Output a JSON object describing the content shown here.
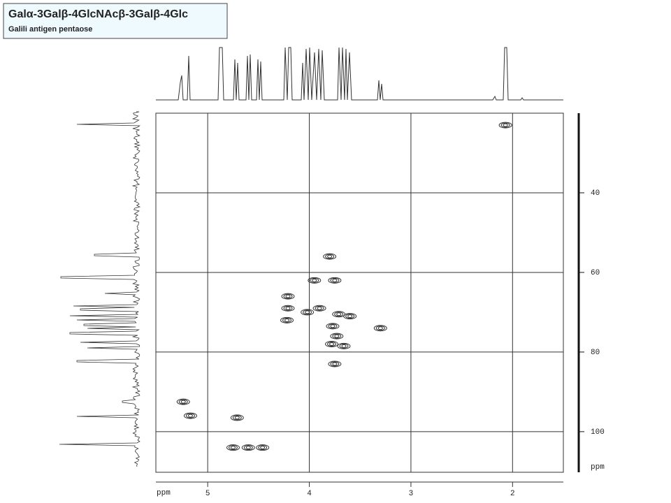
{
  "chart_data": {
    "type": "hsqc",
    "title": "Galα-3Galβ-4GlcNAcβ-3Galβ-4Glc",
    "subtitle": "Galili antigen pentaose",
    "x_label": "ppm",
    "y_label": "ppm",
    "xlim": [
      5.51,
      1.5
    ],
    "ylim": [
      20,
      110.2
    ],
    "xticks": [
      5,
      4,
      3,
      2
    ],
    "yticks": [
      40,
      60,
      80,
      100
    ],
    "grid": true,
    "color": "#333333",
    "x": [
      2.07,
      3.8,
      3.75,
      3.95,
      4.21,
      4.21,
      4.22,
      4.02,
      3.9,
      3.71,
      3.6,
      3.77,
      3.3,
      3.73,
      3.78,
      3.66,
      3.75,
      5.24,
      5.17,
      4.71,
      4.75,
      4.6,
      4.46
    ],
    "y": [
      23,
      56,
      62,
      62,
      66,
      69,
      72,
      70,
      69,
      70.5,
      71,
      73.5,
      74,
      76,
      78,
      78.5,
      83,
      92.5,
      96,
      96.5,
      104,
      104,
      104
    ]
  }
}
